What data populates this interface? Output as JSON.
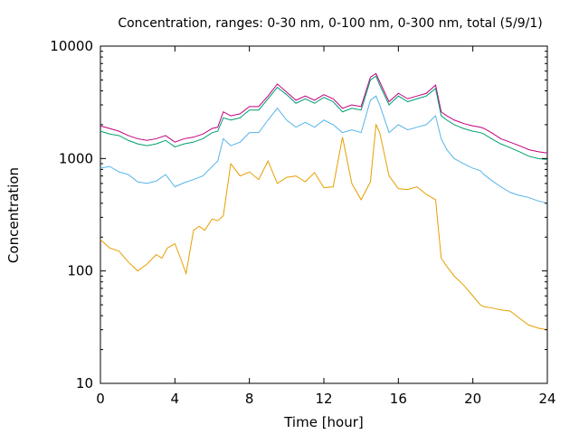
{
  "chart_data": {
    "type": "line",
    "title": "Concentration, ranges: 0-30 nm, 0-100 nm, 0-300 nm, total (5/9/1)",
    "xlabel": "Time [hour]",
    "ylabel": "Concentration",
    "xlim": [
      0,
      24
    ],
    "ylim": [
      10,
      10000
    ],
    "yscale": "log",
    "grid": false,
    "x_ticks": [
      0,
      4,
      8,
      12,
      16,
      20,
      24
    ],
    "x_tick_labels": [
      "0",
      "4",
      "8",
      "12",
      "16",
      "20",
      "24"
    ],
    "y_ticks": [
      10,
      100,
      1000,
      10000
    ],
    "y_tick_labels": [
      "10",
      "100",
      "1000",
      "10000"
    ],
    "series": [
      {
        "color": "#c0007f",
        "x": [
          0.0,
          0.5,
          1.0,
          1.5,
          2.0,
          2.5,
          3.0,
          3.5,
          4.0,
          4.5,
          5.0,
          5.5,
          6.0,
          6.3,
          6.6,
          7.0,
          7.5,
          8.0,
          8.5,
          9.0,
          9.5,
          10.0,
          10.5,
          11.0,
          11.5,
          12.0,
          12.5,
          13.0,
          13.5,
          14.0,
          14.5,
          14.8,
          15.0,
          15.5,
          16.0,
          16.5,
          17.0,
          17.5,
          18.0,
          18.3,
          18.6,
          19.0,
          19.5,
          20.0,
          20.4,
          20.6,
          21.0,
          21.5,
          22.0,
          22.5,
          23.0,
          23.5,
          24.0
        ],
        "y": [
          1950,
          1850,
          1750,
          1600,
          1500,
          1450,
          1500,
          1600,
          1400,
          1500,
          1550,
          1650,
          1850,
          1900,
          2600,
          2400,
          2500,
          2900,
          2900,
          3600,
          4600,
          3900,
          3300,
          3600,
          3300,
          3700,
          3400,
          2800,
          3000,
          2900,
          5300,
          5700,
          4800,
          3200,
          3800,
          3400,
          3600,
          3800,
          4500,
          2600,
          2400,
          2200,
          2050,
          1950,
          1900,
          1850,
          1700,
          1500,
          1400,
          1300,
          1200,
          1150,
          1120
        ]
      },
      {
        "color": "#009e73",
        "x": [
          0.0,
          0.5,
          1.0,
          1.5,
          2.0,
          2.5,
          3.0,
          3.5,
          4.0,
          4.5,
          5.0,
          5.5,
          6.0,
          6.3,
          6.6,
          7.0,
          7.5,
          8.0,
          8.5,
          9.0,
          9.5,
          10.0,
          10.5,
          11.0,
          11.5,
          12.0,
          12.5,
          13.0,
          13.5,
          14.0,
          14.5,
          14.8,
          15.0,
          15.5,
          16.0,
          16.5,
          17.0,
          17.5,
          18.0,
          18.3,
          18.6,
          19.0,
          19.5,
          20.0,
          20.4,
          20.6,
          21.0,
          21.5,
          22.0,
          22.5,
          23.0,
          23.5,
          24.0
        ],
        "y": [
          1750,
          1650,
          1600,
          1450,
          1350,
          1300,
          1350,
          1450,
          1270,
          1350,
          1400,
          1500,
          1700,
          1750,
          2300,
          2200,
          2300,
          2700,
          2700,
          3400,
          4300,
          3700,
          3100,
          3400,
          3100,
          3500,
          3200,
          2600,
          2800,
          2700,
          5000,
          5400,
          4500,
          3000,
          3600,
          3200,
          3400,
          3600,
          4200,
          2400,
          2200,
          2000,
          1850,
          1750,
          1700,
          1650,
          1500,
          1350,
          1250,
          1150,
          1050,
          1000,
          980
        ]
      },
      {
        "color": "#56b4e9",
        "x": [
          0.0,
          0.5,
          1.0,
          1.5,
          2.0,
          2.5,
          3.0,
          3.5,
          4.0,
          4.5,
          5.0,
          5.5,
          6.0,
          6.3,
          6.6,
          7.0,
          7.5,
          8.0,
          8.5,
          9.0,
          9.5,
          10.0,
          10.5,
          11.0,
          11.5,
          12.0,
          12.5,
          13.0,
          13.5,
          14.0,
          14.5,
          14.8,
          15.0,
          15.5,
          16.0,
          16.5,
          17.0,
          17.5,
          18.0,
          18.3,
          18.6,
          19.0,
          19.5,
          20.0,
          20.4,
          20.6,
          21.0,
          21.5,
          22.0,
          22.5,
          23.0,
          23.5,
          24.0
        ],
        "y": [
          820,
          850,
          760,
          720,
          620,
          600,
          630,
          720,
          560,
          610,
          650,
          700,
          850,
          950,
          1500,
          1300,
          1400,
          1700,
          1700,
          2200,
          2800,
          2200,
          1900,
          2100,
          1900,
          2200,
          2000,
          1700,
          1800,
          1700,
          3300,
          3600,
          3000,
          1700,
          2000,
          1800,
          1900,
          2000,
          2400,
          1500,
          1200,
          1000,
          900,
          820,
          780,
          720,
          640,
          560,
          500,
          470,
          450,
          420,
          400
        ]
      },
      {
        "color": "#e69f00",
        "x": [
          0.0,
          0.5,
          1.0,
          1.5,
          2.0,
          2.5,
          3.0,
          3.3,
          3.6,
          4.0,
          4.3,
          4.6,
          5.0,
          5.3,
          5.6,
          6.0,
          6.3,
          6.6,
          7.0,
          7.5,
          8.0,
          8.5,
          9.0,
          9.5,
          10.0,
          10.5,
          11.0,
          11.5,
          12.0,
          12.5,
          13.0,
          13.5,
          14.0,
          14.5,
          14.8,
          15.0,
          15.5,
          16.0,
          16.5,
          17.0,
          17.5,
          18.0,
          18.3,
          18.6,
          19.0,
          19.5,
          20.0,
          20.4,
          20.6,
          21.0,
          21.5,
          22.0,
          22.5,
          23.0,
          23.5,
          24.0
        ],
        "y": [
          190,
          160,
          150,
          120,
          100,
          115,
          140,
          130,
          160,
          175,
          130,
          95,
          230,
          250,
          230,
          290,
          280,
          310,
          900,
          700,
          760,
          650,
          950,
          600,
          680,
          700,
          620,
          750,
          550,
          560,
          1550,
          600,
          430,
          620,
          2000,
          1700,
          700,
          540,
          530,
          560,
          480,
          430,
          130,
          110,
          90,
          75,
          60,
          50,
          48,
          47,
          45,
          44,
          38,
          33,
          31,
          30
        ]
      }
    ]
  }
}
